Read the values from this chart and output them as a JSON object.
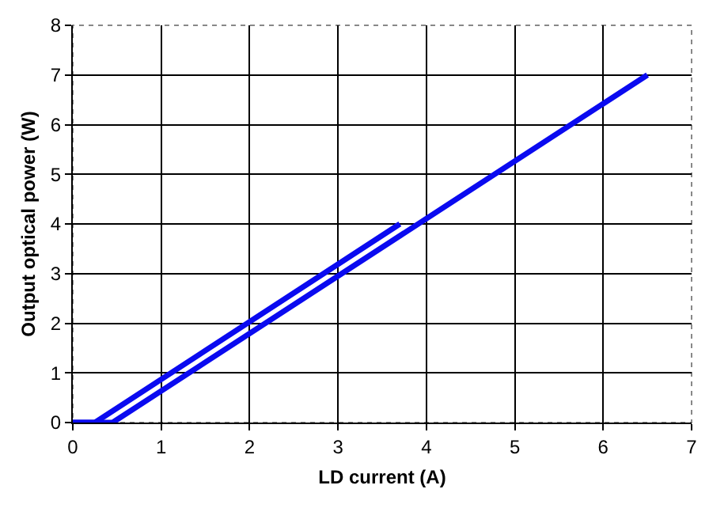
{
  "chart_data": {
    "type": "line",
    "xlabel": "LD current (A)",
    "ylabel": "Output optical power (W)",
    "series": [
      {
        "color": "#0a0af0",
        "x": [
          0,
          0.25,
          3.7
        ],
        "values": [
          0,
          0,
          4
        ]
      },
      {
        "color": "#0a0af0",
        "x": [
          0,
          0.45,
          6.5
        ],
        "values": [
          0,
          0,
          7
        ]
      }
    ],
    "xlim": [
      0,
      7
    ],
    "xticks": [
      0,
      1,
      2,
      3,
      4,
      5,
      6,
      7
    ],
    "ylim": [
      0,
      8
    ],
    "yticks": [
      0,
      1,
      2,
      3,
      4,
      5,
      6,
      7,
      8
    ],
    "grid": true,
    "marker": "none",
    "line_style": "solid"
  }
}
